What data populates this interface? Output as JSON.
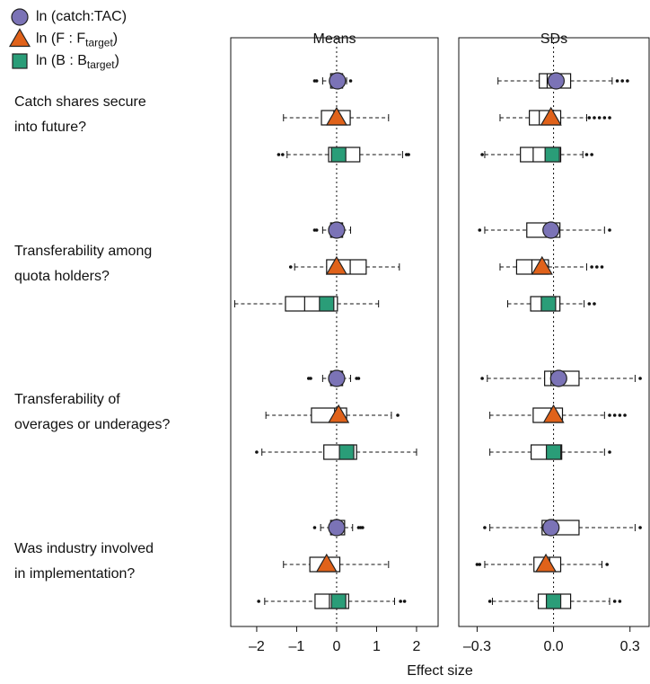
{
  "legend": [
    {
      "name": "ln (catch:TAC)",
      "color": "#7b73b6",
      "marker": "circle"
    },
    {
      "name": "ln (F : F",
      "sub": "target",
      "end": ")",
      "color": "#e0621a",
      "marker": "triangle"
    },
    {
      "name": "ln (B : B",
      "sub": "target",
      "end": ")",
      "color": "#2a9d78",
      "marker": "square"
    }
  ],
  "group_labels": [
    [
      "Catch shares secure",
      "into future?"
    ],
    [
      "Transferability among",
      "quota holders?"
    ],
    [
      "Transferability of",
      "overages or underages?"
    ],
    [
      "Was industry involved",
      "in implementation?"
    ]
  ],
  "xlabel": "Effect size",
  "chart_data": [
    {
      "type": "box",
      "title": "Means",
      "xlim": [
        -2.65,
        2.54
      ],
      "refline": 0,
      "xticks": [
        {
          "value": -2,
          "label": "–2"
        },
        {
          "value": -1,
          "label": "–1"
        },
        0,
        1,
        2
      ],
      "series": [
        {
          "values": [
            0.02,
            0.0,
            0.0,
            0.0
          ],
          "boxes": [
            {
              "whislo": -0.35,
              "q1": -0.15,
              "med": 0.0,
              "q3": 0.15,
              "whishi": 0.25
            },
            {
              "whislo": -0.35,
              "q1": -0.15,
              "med": 0.0,
              "q3": 0.15,
              "whishi": 0.35
            },
            {
              "whislo": -0.35,
              "q1": -0.15,
              "med": 0.0,
              "q3": 0.15,
              "whishi": 0.35
            },
            {
              "whislo": -0.4,
              "q1": -0.15,
              "med": 0.0,
              "q3": 0.2,
              "whishi": 0.4
            }
          ],
          "outliers": [
            [
              -0.55,
              -0.5,
              0.35
            ],
            [
              -0.55,
              -0.5
            ],
            [
              -0.7,
              -0.65,
              0.5,
              0.55
            ],
            [
              -0.55,
              0.55,
              0.6,
              0.65
            ]
          ]
        },
        {
          "values": [
            0.0,
            0.0,
            0.05,
            -0.25
          ],
          "boxes": [
            {
              "whislo": -1.33,
              "q1": -0.38,
              "med": -0.07,
              "q3": 0.34,
              "whishi": 1.3
            },
            {
              "whislo": -1.05,
              "q1": -0.25,
              "med": 0.34,
              "q3": 0.74,
              "whishi": 1.57
            },
            {
              "whislo": -1.77,
              "q1": -0.63,
              "med": -0.05,
              "q3": 0.25,
              "whishi": 1.37
            },
            {
              "whislo": -1.33,
              "q1": -0.67,
              "med": -0.27,
              "q3": 0.08,
              "whishi": 1.3
            }
          ],
          "outliers": [
            [],
            [
              -1.15
            ],
            [
              1.53
            ],
            []
          ]
        },
        {
          "values": [
            0.05,
            -0.25,
            0.25,
            0.05
          ],
          "boxes": [
            {
              "whislo": -1.24,
              "q1": -0.2,
              "med": 0.07,
              "q3": 0.58,
              "whishi": 1.65
            },
            {
              "whislo": -2.55,
              "q1": -1.28,
              "med": -0.8,
              "q3": 0.02,
              "whishi": 1.05
            },
            {
              "whislo": -1.87,
              "q1": -0.32,
              "med": 0.38,
              "q3": 0.5,
              "whishi": 2.0
            },
            {
              "whislo": -1.8,
              "q1": -0.54,
              "med": -0.18,
              "q3": 0.3,
              "whishi": 1.45
            }
          ],
          "outliers": [
            [
              -1.45,
              -1.35,
              1.75,
              1.8
            ],
            [],
            [
              -2.0
            ],
            [
              -1.95,
              1.6,
              1.7
            ]
          ]
        }
      ]
    },
    {
      "type": "box",
      "title": "SDs",
      "xlim": [
        -0.372,
        0.375
      ],
      "refline": 0,
      "xticks": [
        {
          "value": -0.3,
          "label": "–0.3"
        },
        {
          "value": 0,
          "label": "0.0"
        },
        0.3
      ],
      "series": [
        {
          "values": [
            0.01,
            -0.01,
            0.02,
            -0.01
          ],
          "boxes": [
            {
              "whislo": -0.218,
              "q1": -0.056,
              "med": -0.025,
              "q3": 0.067,
              "whishi": 0.23
            },
            {
              "whislo": -0.27,
              "q1": -0.105,
              "med": -0.02,
              "q3": 0.025,
              "whishi": 0.2
            },
            {
              "whislo": -0.26,
              "q1": -0.035,
              "med": -0.01,
              "q3": 0.1,
              "whishi": 0.32
            },
            {
              "whislo": -0.25,
              "q1": -0.045,
              "med": 0.01,
              "q3": 0.1,
              "whishi": 0.32
            }
          ],
          "outliers": [
            [
              0.25,
              0.27,
              0.29
            ],
            [
              -0.29,
              0.22
            ],
            [
              -0.28,
              0.34
            ],
            [
              -0.27,
              0.34
            ]
          ]
        },
        {
          "values": [
            -0.01,
            -0.045,
            0.0,
            -0.03
          ],
          "boxes": [
            {
              "whislo": -0.21,
              "q1": -0.095,
              "med": -0.056,
              "q3": 0.028,
              "whishi": 0.13
            },
            {
              "whislo": -0.21,
              "q1": -0.145,
              "med": -0.085,
              "q3": -0.02,
              "whishi": 0.13
            },
            {
              "whislo": -0.25,
              "q1": -0.08,
              "med": -0.01,
              "q3": 0.035,
              "whishi": 0.2
            },
            {
              "whislo": -0.27,
              "q1": -0.077,
              "med": -0.015,
              "q3": 0.028,
              "whishi": 0.19
            }
          ],
          "outliers": [
            [
              0.14,
              0.16,
              0.18,
              0.2,
              0.22
            ],
            [
              0.15,
              0.17,
              0.19
            ],
            [
              0.22,
              0.24,
              0.26,
              0.28
            ],
            [
              -0.29,
              -0.3,
              0.21
            ]
          ]
        },
        {
          "values": [
            -0.005,
            -0.02,
            0.0,
            0.0
          ],
          "boxes": [
            {
              "whislo": -0.27,
              "q1": -0.13,
              "med": -0.08,
              "q3": 0.028,
              "whishi": 0.115
            },
            {
              "whislo": -0.18,
              "q1": -0.09,
              "med": -0.045,
              "q3": 0.025,
              "whishi": 0.12
            },
            {
              "whislo": -0.25,
              "q1": -0.088,
              "med": -0.02,
              "q3": 0.032,
              "whishi": 0.2
            },
            {
              "whislo": -0.24,
              "q1": -0.06,
              "med": 0.0,
              "q3": 0.067,
              "whishi": 0.22
            }
          ],
          "outliers": [
            [
              -0.28,
              0.13,
              0.15
            ],
            [
              0.14,
              0.16
            ],
            [
              0.22
            ],
            [
              -0.25,
              0.24,
              0.26
            ]
          ]
        }
      ]
    }
  ]
}
